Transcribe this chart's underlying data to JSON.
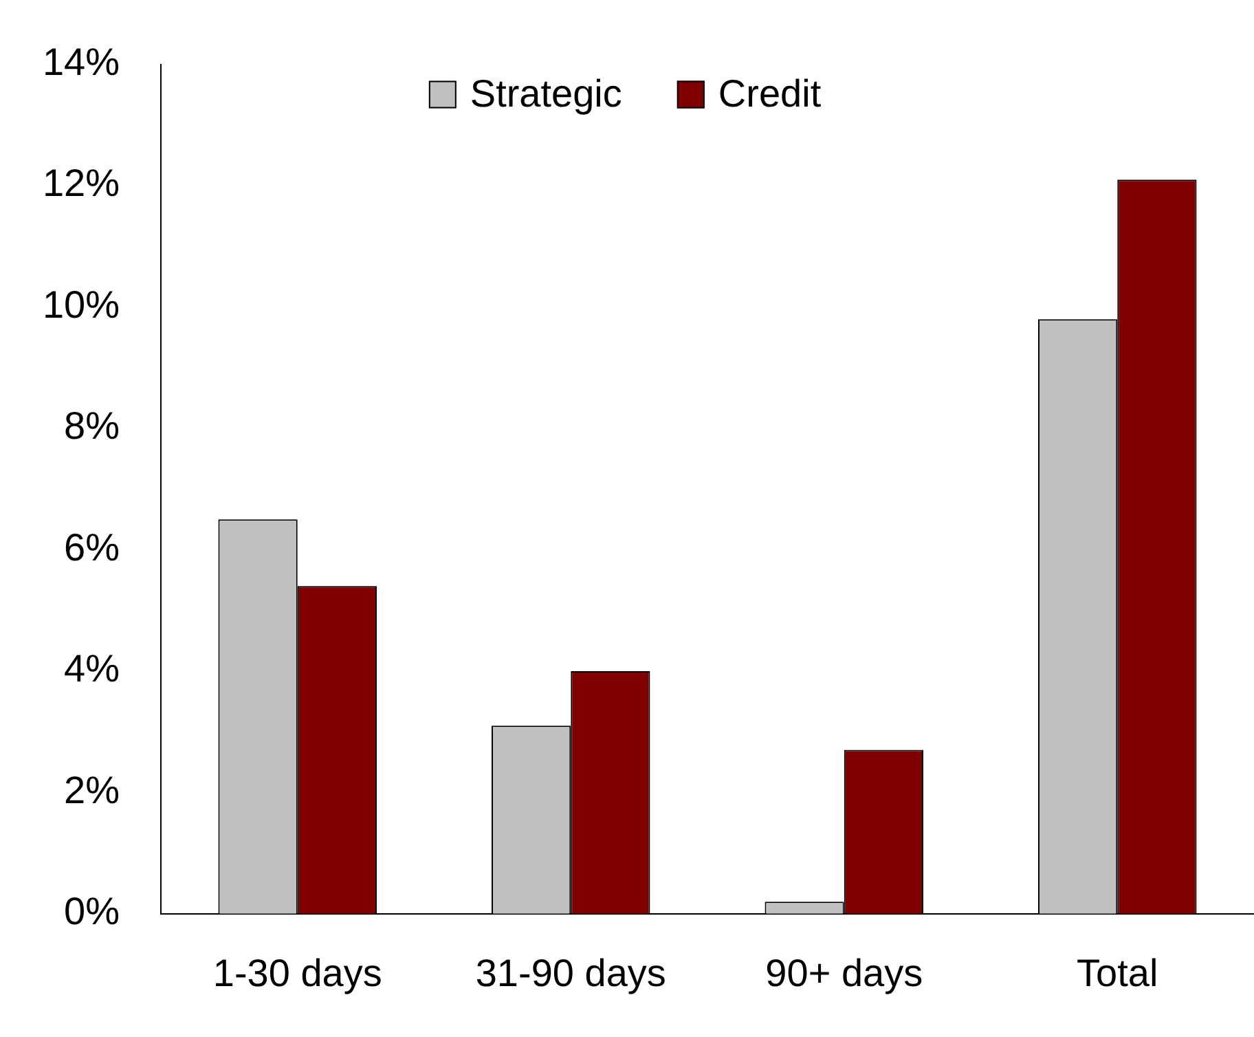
{
  "chart_data": {
    "type": "bar",
    "categories": [
      "1-30 days",
      "31-90 days",
      "90+ days",
      "Total"
    ],
    "series": [
      {
        "name": "Strategic",
        "color": "#c0c0c0",
        "values": [
          6.5,
          3.1,
          0.2,
          9.8
        ]
      },
      {
        "name": "Credit",
        "color": "#800000",
        "values": [
          5.4,
          4.0,
          2.7,
          12.1
        ]
      }
    ],
    "ylim": [
      0,
      14
    ],
    "yticks": [
      {
        "value": 0,
        "label": "0%"
      },
      {
        "value": 2,
        "label": "2%"
      },
      {
        "value": 4,
        "label": "4%"
      },
      {
        "value": 6,
        "label": "6%"
      },
      {
        "value": 8,
        "label": "8%"
      },
      {
        "value": 10,
        "label": "10%"
      },
      {
        "value": 12,
        "label": "12%"
      },
      {
        "value": 14,
        "label": "14%"
      }
    ],
    "grid": false,
    "legend": "top"
  }
}
